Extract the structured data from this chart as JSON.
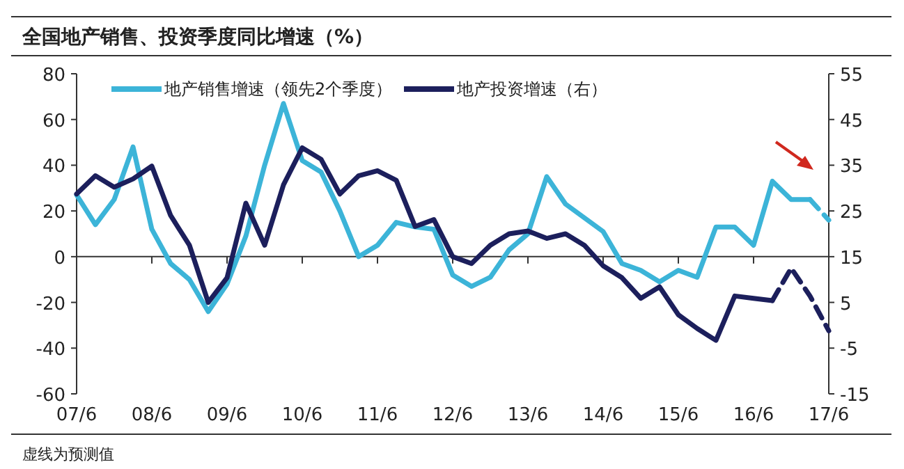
{
  "chart_data": {
    "type": "line",
    "title": "全国地产销售、投资季度同比增速（%）",
    "annotations": [
      "虚线为预测值"
    ],
    "categories": [
      "07/6",
      null,
      null,
      null,
      "08/6",
      null,
      null,
      null,
      "09/6",
      null,
      null,
      null,
      "10/6",
      null,
      null,
      null,
      "11/6",
      null,
      null,
      null,
      "12/6",
      null,
      null,
      null,
      "13/6",
      null,
      null,
      null,
      "14/6",
      null,
      null,
      null,
      "15/6",
      null,
      null,
      null,
      "16/6",
      null,
      null,
      null,
      "17/6"
    ],
    "ylim": [
      -60,
      80
    ],
    "yticks": [
      -60,
      -40,
      -20,
      0,
      20,
      40,
      60,
      80
    ],
    "y2lim": [
      -15,
      55
    ],
    "y2ticks": [
      -15,
      -5,
      5,
      15,
      25,
      35,
      45,
      55
    ],
    "legend": "top",
    "marker": "none",
    "series": [
      {
        "name": "地产销售增速（领先2个季度）",
        "color": "#3cb4d8",
        "line_style": "solid",
        "values": [
          27,
          14,
          25,
          48,
          12,
          -3,
          -10,
          -24,
          -12,
          9,
          40,
          67,
          42,
          37,
          20,
          0,
          5,
          15,
          13,
          12,
          -8,
          -13,
          -9,
          3,
          10,
          35,
          23,
          17,
          11,
          -3,
          -6,
          -11,
          -6,
          -9,
          13,
          13,
          5,
          33,
          25,
          25,
          null
        ]
      },
      {
        "color": "#3cb4d8",
        "line_style": "dashed",
        "values": [
          null,
          null,
          null,
          null,
          null,
          null,
          null,
          null,
          null,
          null,
          null,
          null,
          null,
          null,
          null,
          null,
          null,
          null,
          null,
          null,
          null,
          null,
          null,
          null,
          null,
          null,
          null,
          null,
          null,
          null,
          null,
          null,
          null,
          null,
          null,
          null,
          null,
          null,
          null,
          25,
          16
        ]
      },
      {
        "name": "地产投资增速（右）",
        "color": "#1c1f5c",
        "axis": "y2",
        "line_style": "solid",
        "values": [
          28.7,
          32.7,
          30.2,
          32,
          34.8,
          24,
          17.5,
          5,
          10.4,
          26.7,
          17.5,
          30.7,
          38.8,
          36.3,
          28.7,
          32.7,
          33.8,
          31.7,
          21.6,
          23.1,
          15,
          13.5,
          17.5,
          20,
          20.6,
          19,
          20,
          17.5,
          13,
          10.4,
          5.9,
          8.4,
          2.3,
          -0.7,
          -3.3,
          6.4,
          5.9,
          5.4,
          null,
          null,
          null
        ]
      },
      {
        "color": "#1c1f5c",
        "axis": "y2",
        "line_style": "dashed",
        "values": [
          null,
          null,
          null,
          null,
          null,
          null,
          null,
          null,
          null,
          null,
          null,
          null,
          null,
          null,
          null,
          null,
          null,
          null,
          null,
          null,
          null,
          null,
          null,
          null,
          null,
          null,
          null,
          null,
          null,
          null,
          null,
          null,
          null,
          null,
          null,
          null,
          null,
          5.4,
          12.5,
          6.4,
          -1.2
        ]
      }
    ]
  }
}
